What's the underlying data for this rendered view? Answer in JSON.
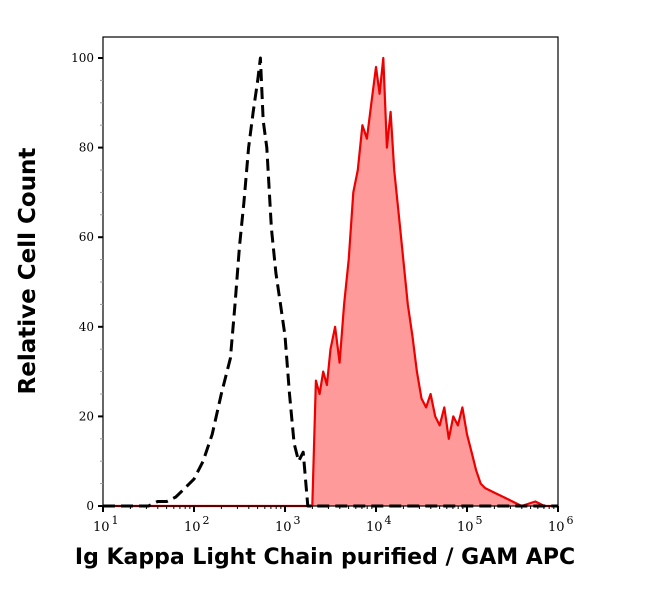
{
  "chart_data": {
    "type": "area",
    "xlabel": "Ig Kappa Light Chain purified / GAM APC",
    "ylabel": "Relative Cell Count",
    "x_scale": "log",
    "xlim": [
      10,
      1000000
    ],
    "ylim": [
      0,
      100
    ],
    "x_ticks": [
      {
        "base": "10",
        "exp": "1",
        "value": 1
      },
      {
        "base": "10",
        "exp": "2",
        "value": 2
      },
      {
        "base": "10",
        "exp": "3",
        "value": 3
      },
      {
        "base": "10",
        "exp": "4",
        "value": 4
      },
      {
        "base": "10",
        "exp": "5",
        "value": 5
      },
      {
        "base": "10",
        "exp": "6",
        "value": 6
      }
    ],
    "y_ticks": [
      "0",
      "20",
      "40",
      "60",
      "80",
      "100"
    ],
    "grid": false,
    "series": [
      {
        "style": "dashed",
        "color": "#000000",
        "fill": "none",
        "log10_x": [
          1.0,
          1.5,
          1.6,
          1.7,
          1.8,
          1.9,
          2.0,
          2.1,
          2.2,
          2.3,
          2.4,
          2.45,
          2.5,
          2.55,
          2.6,
          2.65,
          2.7,
          2.73,
          2.76,
          2.8,
          2.85,
          2.9,
          2.95,
          3.0,
          3.05,
          3.1,
          3.15,
          3.2,
          3.25,
          6.0
        ],
        "y": [
          0,
          0,
          1,
          1,
          2,
          4,
          6,
          10,
          16,
          25,
          33,
          45,
          58,
          68,
          80,
          88,
          95,
          100,
          86,
          80,
          62,
          52,
          45,
          38,
          25,
          14,
          10,
          12,
          0,
          0
        ]
      },
      {
        "style": "solid",
        "color": "#ee0000",
        "fill": "#ff9a9a",
        "log10_x": [
          1.0,
          3.3,
          3.34,
          3.38,
          3.42,
          3.46,
          3.5,
          3.55,
          3.6,
          3.65,
          3.7,
          3.75,
          3.8,
          3.85,
          3.9,
          3.95,
          4.0,
          4.04,
          4.08,
          4.12,
          4.16,
          4.2,
          4.25,
          4.3,
          4.35,
          4.4,
          4.45,
          4.5,
          4.55,
          4.6,
          4.65,
          4.7,
          4.75,
          4.8,
          4.85,
          4.9,
          4.95,
          5.0,
          5.05,
          5.1,
          5.15,
          5.2,
          5.3,
          5.4,
          5.5,
          5.6,
          5.75,
          5.85,
          6.0
        ],
        "y": [
          0,
          0,
          28,
          25,
          30,
          27,
          35,
          40,
          32,
          45,
          55,
          70,
          75,
          85,
          82,
          90,
          98,
          92,
          100,
          80,
          88,
          75,
          65,
          55,
          45,
          38,
          30,
          24,
          22,
          25,
          20,
          18,
          22,
          15,
          20,
          18,
          22,
          16,
          12,
          8,
          5,
          4,
          3,
          2,
          1,
          0,
          1,
          0,
          0
        ]
      }
    ]
  }
}
